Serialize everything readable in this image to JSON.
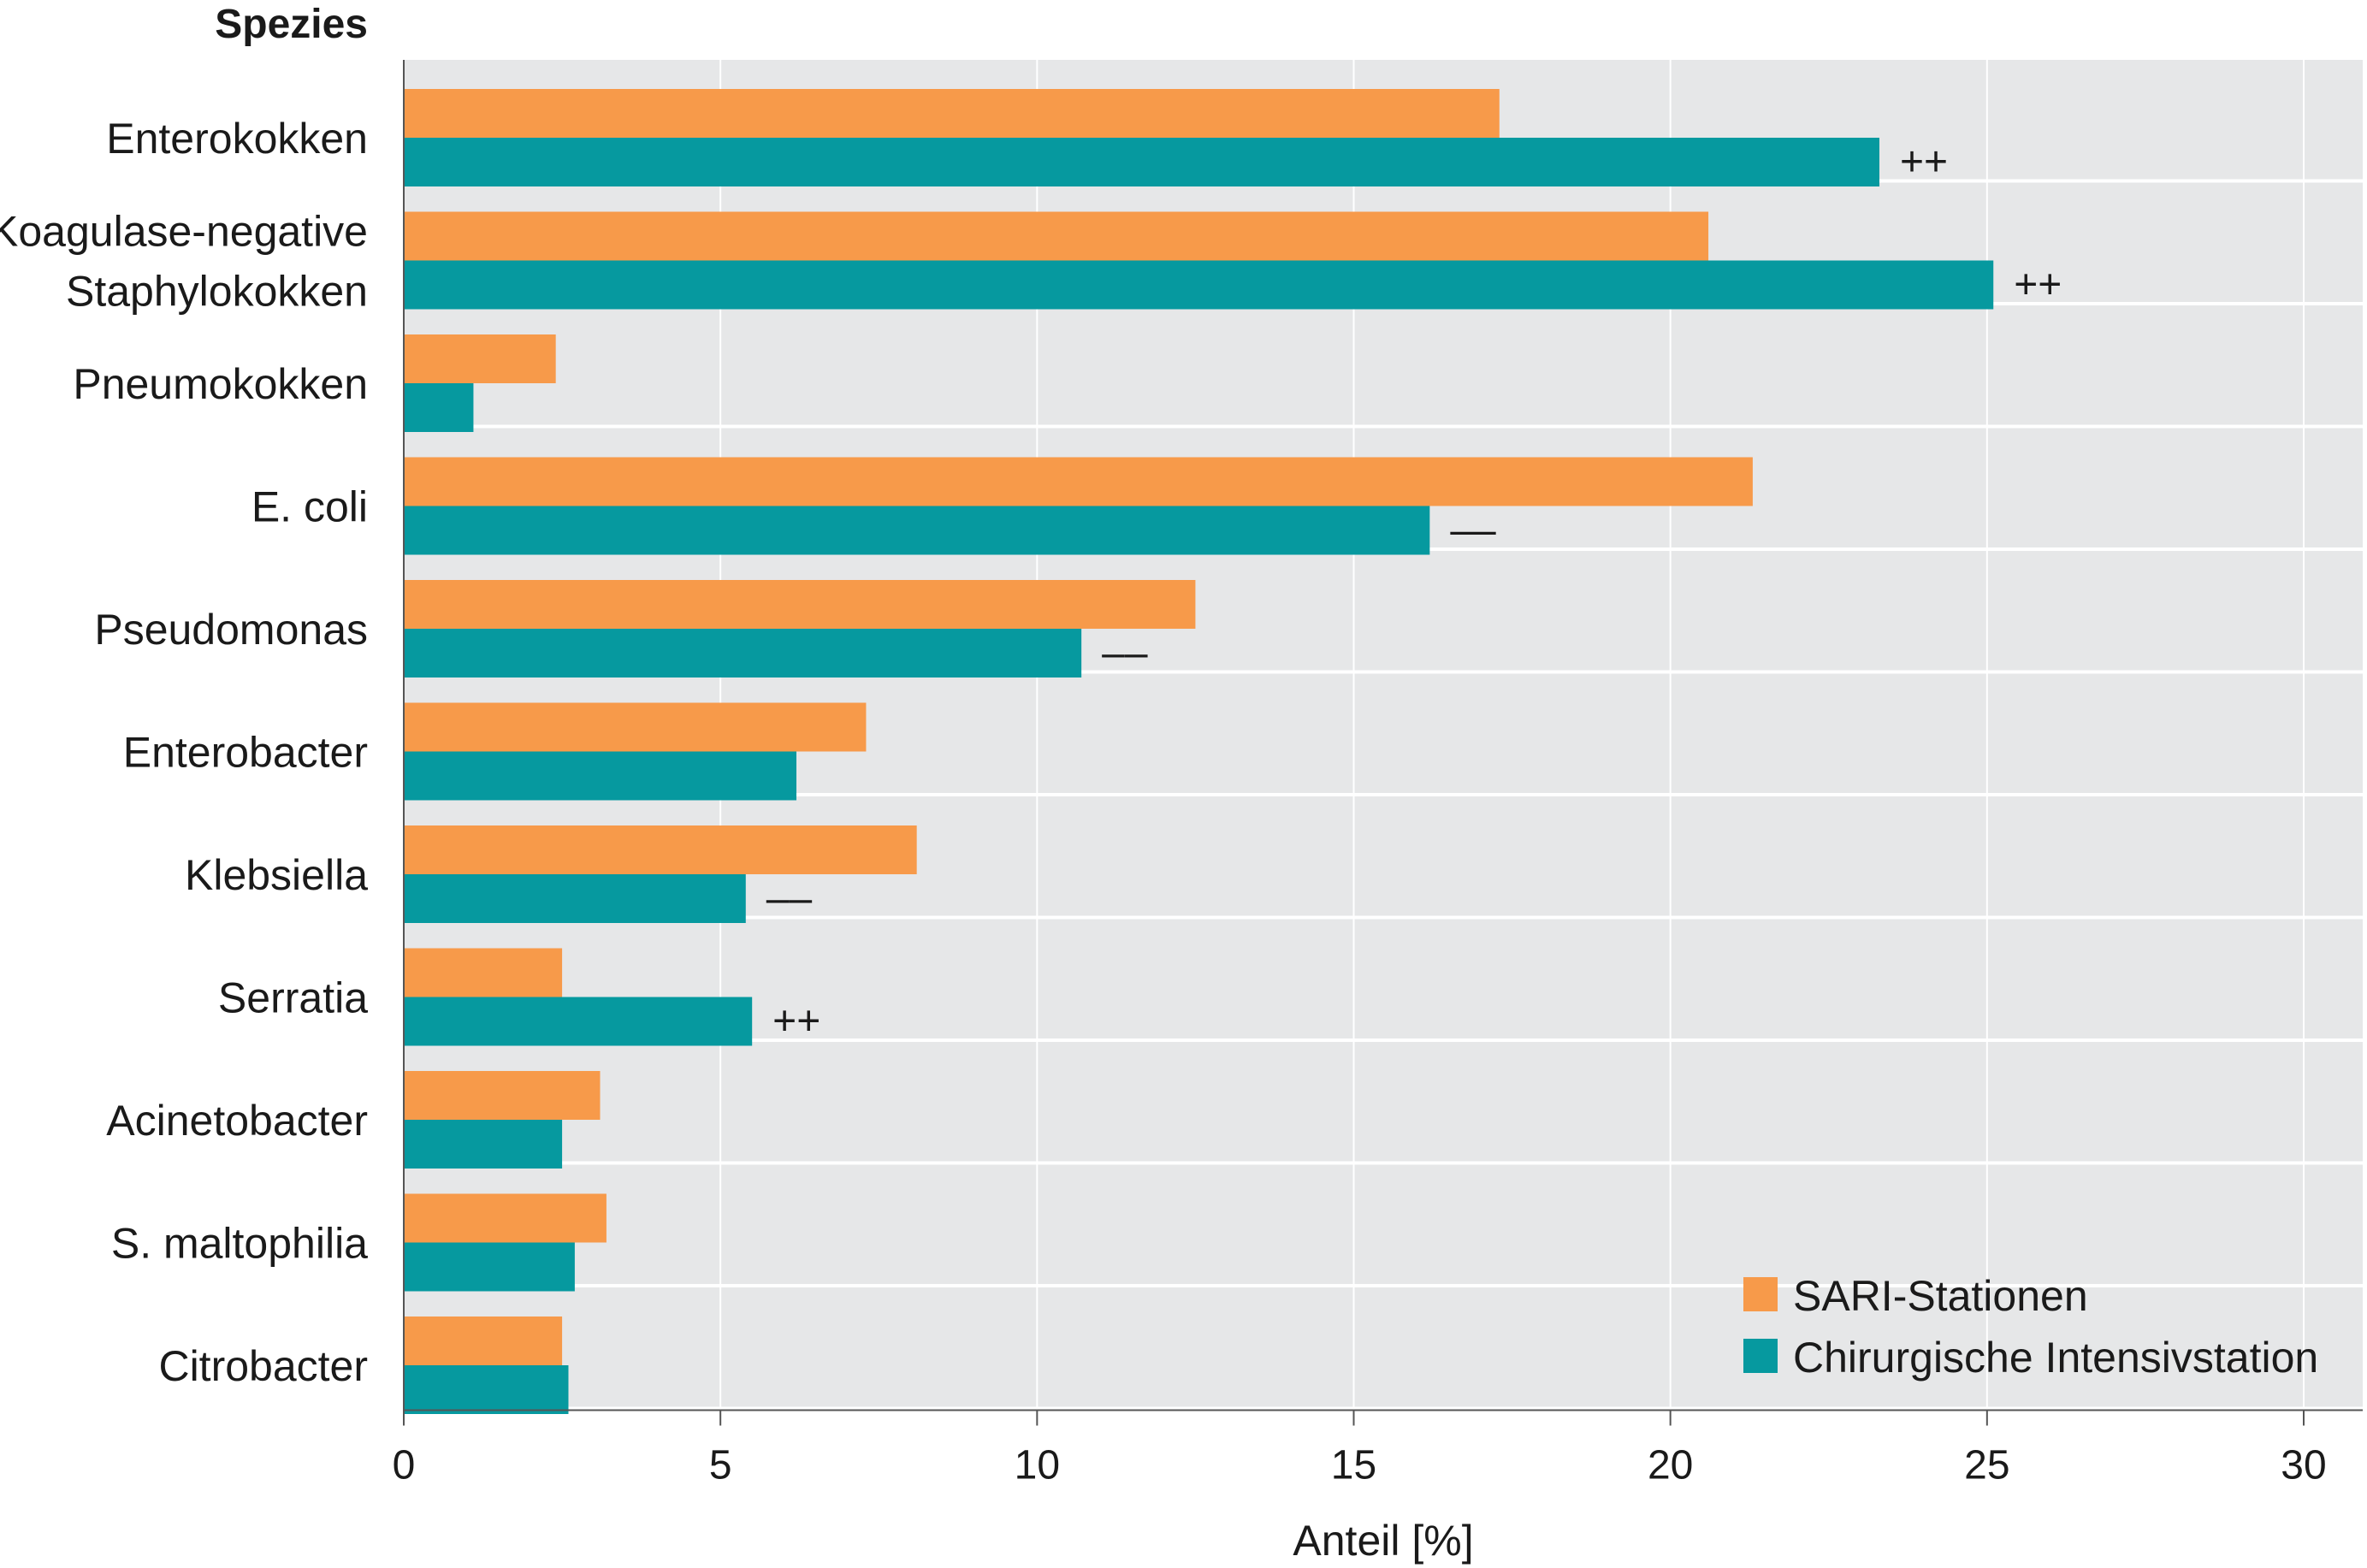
{
  "chart_data": {
    "type": "bar",
    "orientation": "horizontal",
    "category_axis_title": "Spezies",
    "xlabel": "Anteil [%]",
    "xlim": [
      0,
      30
    ],
    "xticks": [
      0,
      5,
      10,
      15,
      20,
      25,
      30
    ],
    "grid": false,
    "legend_position": "bottom-right",
    "categories": [
      [
        "Enterokokken"
      ],
      [
        "Koagulase-negative",
        "Staphylokokken"
      ],
      [
        "Pneumokokken"
      ],
      [
        "E. coli"
      ],
      [
        "Pseudomonas"
      ],
      [
        "Enterobacter"
      ],
      [
        "Klebsiella"
      ],
      [
        "Serratia"
      ],
      [
        "Acinetobacter"
      ],
      [
        "S. maltophilia"
      ],
      [
        "Citrobacter"
      ]
    ],
    "series": [
      {
        "name": "SARI-Stationen",
        "color": "#f79a4a",
        "values": [
          17.3,
          20.6,
          2.4,
          21.3,
          12.5,
          7.3,
          8.1,
          2.5,
          3.1,
          3.2,
          2.5
        ]
      },
      {
        "name": "Chirurgische Intensivstation",
        "color": "#06999f",
        "values": [
          23.3,
          25.1,
          1.1,
          16.2,
          10.7,
          6.2,
          5.4,
          5.5,
          2.5,
          2.7,
          2.6
        ]
      }
    ],
    "significance": [
      "++",
      "++",
      "",
      "––",
      "––",
      "",
      "––",
      "++",
      "",
      "",
      ""
    ],
    "band_color": "#e6e7e8"
  }
}
